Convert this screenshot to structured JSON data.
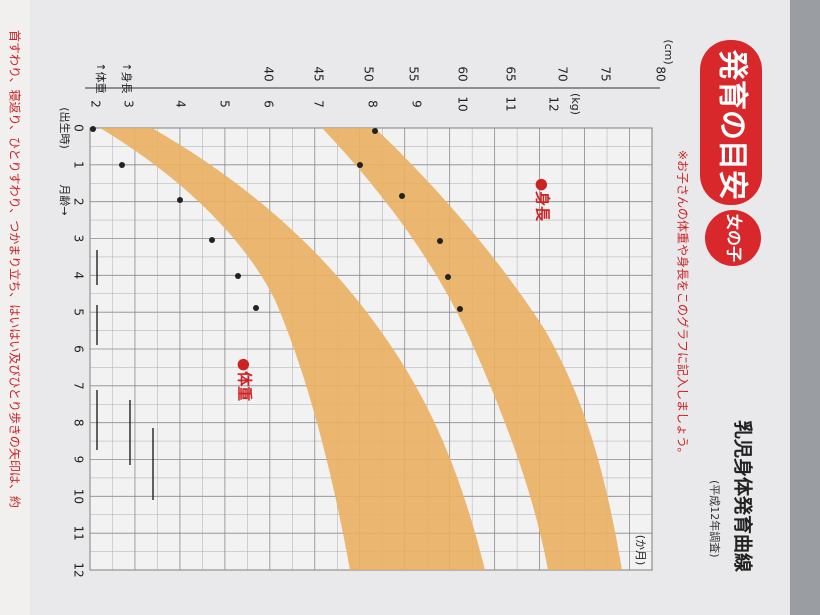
{
  "header": {
    "badge": "発育の目安",
    "sub_badge": "女の子",
    "title": "乳児身体発育曲線",
    "survey": "(平成12年調査)",
    "note": "※お子さんの体重や身長をこのグラフに記入しましょう。"
  },
  "chart": {
    "height_label": "●身長",
    "weight_label": "●体重",
    "cm_unit": "(cm)",
    "cm_ticks": [
      "80",
      "75",
      "70",
      "65",
      "60",
      "55",
      "50",
      "45",
      "40"
    ],
    "kg_unit": "(kg)",
    "kg_ticks": [
      "12",
      "11",
      "10",
      "9",
      "8",
      "7",
      "6",
      "5",
      "4",
      "3",
      "2"
    ],
    "weight_axis": "↑体重",
    "height_axis": "↑身長",
    "month_ticks": [
      "0",
      "1",
      "2",
      "3",
      "4",
      "5",
      "6",
      "7",
      "8",
      "9",
      "10",
      "11",
      "12"
    ],
    "birth": "(出生時)",
    "month_axis": "月齢→",
    "month_unit": "(か月)"
  },
  "footer": {
    "text": "首すわり、寝返り、ひとりすわり、つかまり立ち、はいはい及びひとり歩きの矢印は、約"
  }
}
